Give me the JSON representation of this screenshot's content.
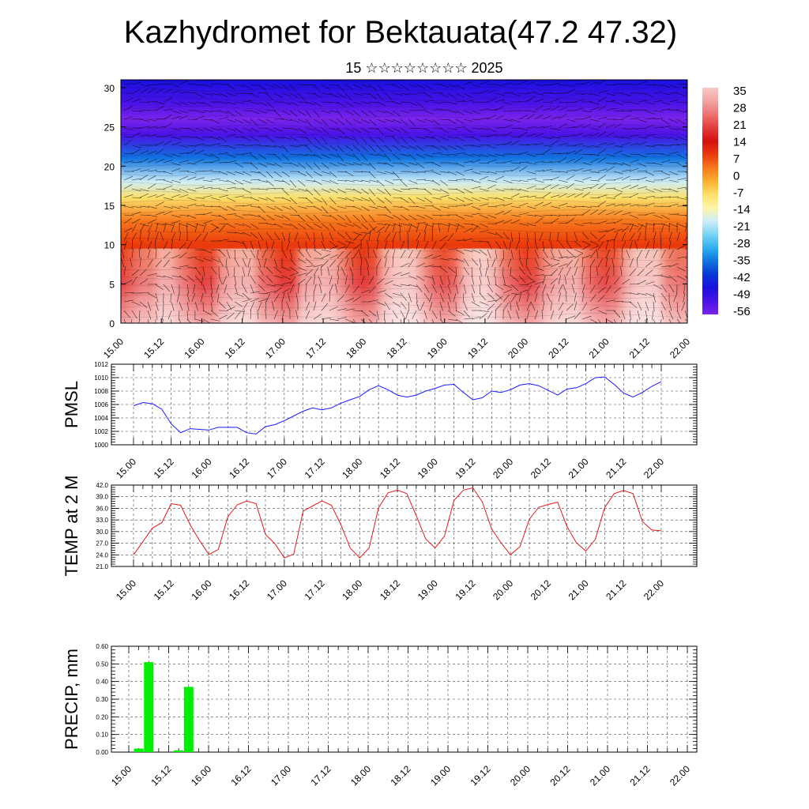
{
  "header": {
    "title": "Kazhydromet for Bektauata(47.2 47.32)",
    "subtitle": "15 ☆☆☆☆☆☆☆☆ 2025"
  },
  "colors": {
    "pmsl_line": "#1a1aff",
    "temp_line": "#e31a1c",
    "precip_bar": "#00ee00",
    "grid": "#444444"
  },
  "chart_data": [
    {
      "type": "heatmap",
      "name": "vertical-cross-section",
      "title": "",
      "x_tick_labels": [
        "15.00",
        "15.12",
        "16.00",
        "16.12",
        "17.00",
        "17.12",
        "18.00",
        "18.12",
        "19.00",
        "19.12",
        "20.00",
        "20.12",
        "21.00",
        "21.12",
        "22.00"
      ],
      "y_ticks": [
        0,
        5,
        10,
        15,
        20,
        25,
        30
      ],
      "ylim": [
        0,
        31
      ],
      "levels": [
        35,
        28,
        21,
        14,
        7,
        0,
        -7,
        -14,
        -21,
        -28,
        -35,
        -42,
        -49,
        -56
      ],
      "colorbar_colors": [
        "#f6c9c9",
        "#f3a3a3",
        "#ee7373",
        "#e43c3c",
        "#d70f0f",
        "#ea3a0b",
        "#f7781c",
        "#fbb030",
        "#fde06a",
        "#fff4a6",
        "#cfeef8",
        "#7ad4f2",
        "#2fb0ee",
        "#1074e0",
        "#0838d8",
        "#1a10e0",
        "#4a12e6",
        "#7a24ea"
      ],
      "vertical_temperature_profile": [
        {
          "height": 0,
          "value": 32
        },
        {
          "height": 5,
          "value": 24
        },
        {
          "height": 10,
          "value": 12
        },
        {
          "height": 13,
          "value": 2
        },
        {
          "height": 16,
          "value": -10
        },
        {
          "height": 18,
          "value": -22
        },
        {
          "height": 21,
          "value": -38
        },
        {
          "height": 24,
          "value": -52
        },
        {
          "height": 26,
          "value": -58
        },
        {
          "height": 28,
          "value": -54
        },
        {
          "height": 31,
          "value": -50
        }
      ],
      "overlay": "wind vectors"
    },
    {
      "type": "line",
      "name": "PMSL",
      "ylabel": "PMSL",
      "ylim": [
        1000,
        1012
      ],
      "y_ticks": [
        "1012",
        "1010",
        "1008",
        "1006",
        "1004",
        "1002",
        "1000"
      ],
      "x_tick_labels": [
        "15.00",
        "15.12",
        "16.00",
        "16.12",
        "17.00",
        "17.12",
        "18.00",
        "18.12",
        "19.00",
        "19.12",
        "20.00",
        "20.12",
        "21.00",
        "21.12",
        "22.00"
      ],
      "x_hours": [
        0,
        3,
        6,
        9,
        12,
        15,
        18,
        21,
        24,
        27,
        30,
        33,
        36,
        39,
        42,
        45,
        48,
        51,
        54,
        57,
        60,
        63,
        66,
        69,
        72,
        75,
        78,
        81,
        84,
        87,
        90,
        93,
        96,
        99,
        102,
        105,
        108,
        111,
        114,
        117,
        120,
        123,
        126,
        129,
        132,
        135,
        138,
        141,
        144,
        147,
        150,
        153,
        156,
        159,
        162,
        165,
        168
      ],
      "values": [
        1005.8,
        1006.3,
        1006.1,
        1005.3,
        1003.1,
        1001.8,
        1002.4,
        1002.3,
        1002.2,
        1002.6,
        1002.6,
        1002.6,
        1001.8,
        1001.6,
        1002.7,
        1003.0,
        1003.6,
        1004.3,
        1005.0,
        1005.5,
        1005.2,
        1005.5,
        1006.2,
        1006.7,
        1007.2,
        1008.2,
        1008.8,
        1008.2,
        1007.4,
        1007.1,
        1007.4,
        1008.0,
        1008.4,
        1008.9,
        1009.0,
        1007.8,
        1006.7,
        1007.0,
        1008.0,
        1007.8,
        1008.2,
        1008.9,
        1009.1,
        1008.8,
        1008.1,
        1007.4,
        1008.3,
        1008.5,
        1009.1,
        1010.0,
        1010.1,
        1009.0,
        1007.7,
        1007.1,
        1007.8,
        1008.7,
        1009.4
      ]
    },
    {
      "type": "line",
      "name": "TEMP at 2 M",
      "ylabel": "TEMP at 2 M",
      "ylim": [
        21,
        42
      ],
      "y_ticks": [
        "42.0",
        "39.0",
        "36.0",
        "33.0",
        "30.0",
        "27.0",
        "24.0",
        "21.0"
      ],
      "x_tick_labels": [
        "15.00",
        "15.12",
        "16.00",
        "16.12",
        "17.00",
        "17.12",
        "18.00",
        "18.12",
        "19.00",
        "19.12",
        "20.00",
        "20.12",
        "21.00",
        "21.12",
        "22.00"
      ],
      "x_hours": [
        0,
        3,
        6,
        9,
        12,
        15,
        18,
        21,
        24,
        27,
        30,
        33,
        36,
        39,
        42,
        45,
        48,
        51,
        54,
        57,
        60,
        63,
        66,
        69,
        72,
        75,
        78,
        81,
        84,
        87,
        90,
        93,
        96,
        99,
        102,
        105,
        108,
        111,
        114,
        117,
        120,
        123,
        126,
        129,
        132,
        135,
        138,
        141,
        144,
        147,
        150,
        153,
        156,
        159,
        162,
        165,
        168
      ],
      "values": [
        24.0,
        27.4,
        30.9,
        32.3,
        37.2,
        36.8,
        31.8,
        27.7,
        24.1,
        25.4,
        33.8,
        36.9,
        37.9,
        37.2,
        29.3,
        26.9,
        23.2,
        24.2,
        35.3,
        36.6,
        37.9,
        36.8,
        31.8,
        25.7,
        23.2,
        25.8,
        36.1,
        40.0,
        40.7,
        39.8,
        34.1,
        28.1,
        25.8,
        28.8,
        38.0,
        40.7,
        41.3,
        37.7,
        30.7,
        27.1,
        24.0,
        26.1,
        33.2,
        36.3,
        37.0,
        37.6,
        31.3,
        27.1,
        25.0,
        28.0,
        36.2,
        39.8,
        40.6,
        39.8,
        32.6,
        30.4,
        30.2
      ]
    },
    {
      "type": "bar",
      "name": "PRECIP, mm",
      "ylabel": "PRECIP, mm",
      "ylim": [
        0,
        0.6
      ],
      "y_ticks": [
        "0.60",
        "0.50",
        "0.40",
        "0.30",
        "0.20",
        "0.10",
        "0.00"
      ],
      "x_tick_labels": [
        "15.00",
        "15.12",
        "16.00",
        "16.12",
        "17.00",
        "17.12",
        "18.00",
        "18.12",
        "19.00",
        "19.12",
        "20.00",
        "20.12",
        "21.00",
        "21.12",
        "22.00"
      ],
      "bar_hours": [
        3,
        6,
        15,
        18
      ],
      "values": [
        0.02,
        0.51,
        0.01,
        0.37
      ]
    }
  ]
}
